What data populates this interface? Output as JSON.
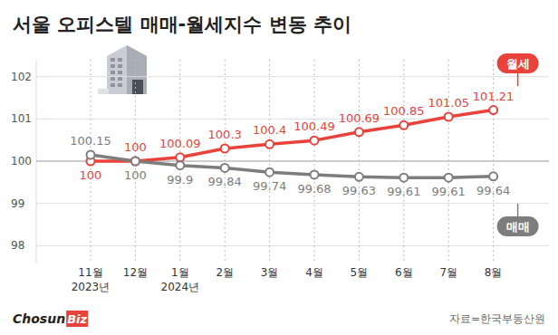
{
  "chart_data": {
    "type": "line",
    "title": "서울 오피스텔 매매-월세지수 변동 추이",
    "categories": [
      "11월\n2023년",
      "12월",
      "1월\n2024년",
      "2월",
      "3월",
      "4월",
      "5월",
      "6월",
      "7월",
      "8월"
    ],
    "series": [
      {
        "name": "월세",
        "color": "#e8423b",
        "marker": "circle",
        "values": [
          100,
          100,
          100.09,
          100.3,
          100.4,
          100.49,
          100.69,
          100.85,
          101.05,
          101.21
        ]
      },
      {
        "name": "매매",
        "color": "#7d7d7d",
        "marker": "circle",
        "values": [
          100.15,
          100,
          99.9,
          99.84,
          99.74,
          99.68,
          99.63,
          99.61,
          99.61,
          99.64
        ]
      }
    ],
    "ylim": [
      97.6,
      102.4
    ],
    "yticks": [
      98,
      99,
      100,
      101,
      102
    ],
    "grid": true,
    "data_labels": true,
    "source": "자료=한국부동산원",
    "logo": [
      "Chosun",
      "Biz"
    ]
  }
}
